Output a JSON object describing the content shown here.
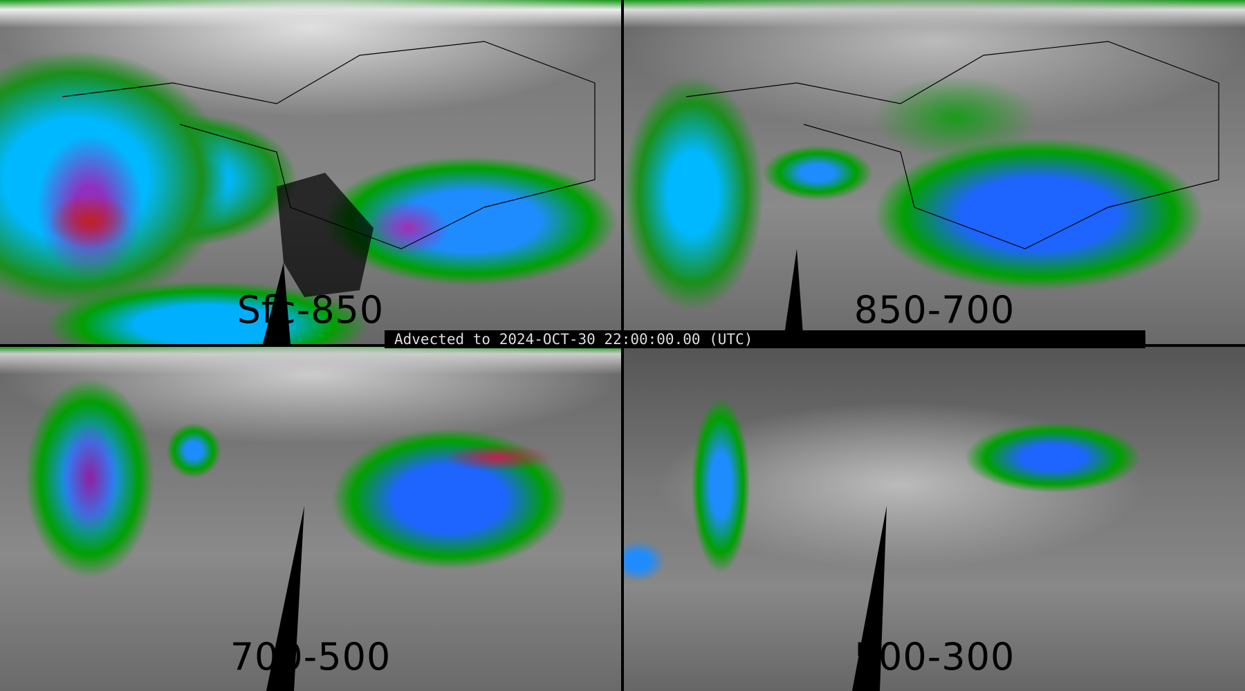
{
  "banner": {
    "text": "Advected to 2024-OCT-30 22:00:00.00 (UTC)"
  },
  "panels": [
    {
      "label": "Sfc-850"
    },
    {
      "label": "850-700"
    },
    {
      "label": "700-500"
    },
    {
      "label": "500-300"
    }
  ],
  "colors": {
    "low": "#000000",
    "mid": "#808080",
    "high": "#ffffff",
    "green": "#00a000",
    "cyan": "#00c8ff",
    "blue": "#1e64ff",
    "purple": "#a040c0",
    "red": "#ff2000"
  }
}
